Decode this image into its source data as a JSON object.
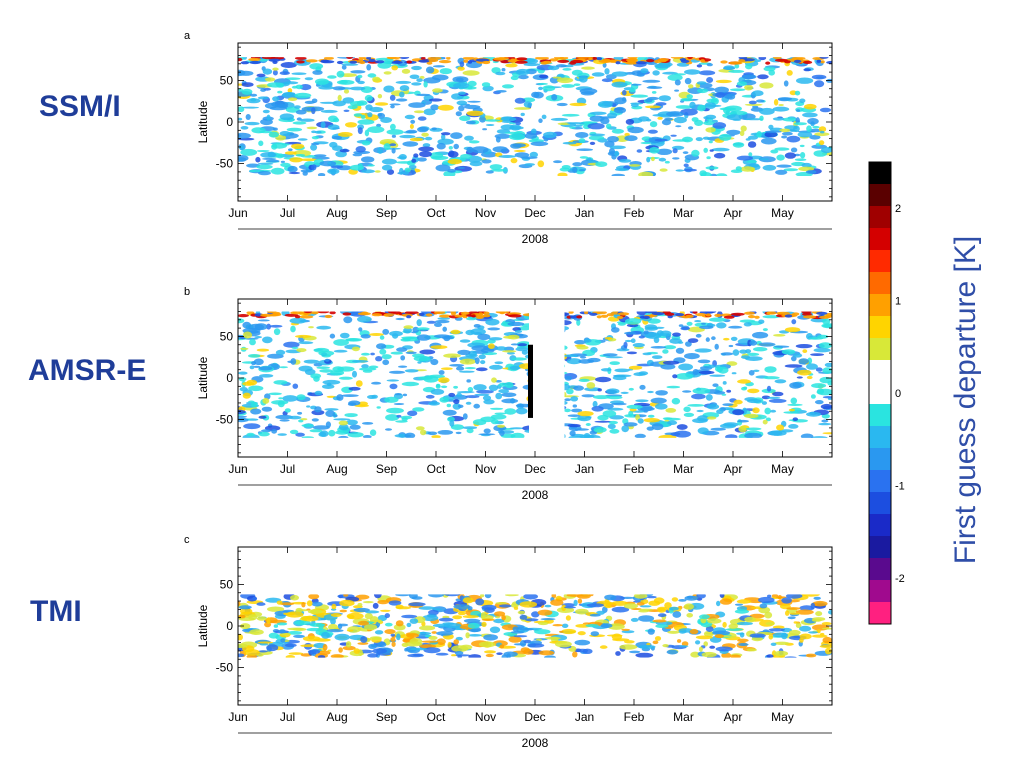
{
  "panels": [
    {
      "letter": "a",
      "sensor": "SSM/I",
      "ylabel": "Latitude",
      "year": "2008",
      "coverage": [
        -65,
        78
      ]
    },
    {
      "letter": "b",
      "sensor": "AMSR-E",
      "ylabel": "Latitude",
      "year": "2008",
      "coverage": [
        -72,
        80
      ]
    },
    {
      "letter": "c",
      "sensor": "TMI",
      "ylabel": "Latitude",
      "year": "2008",
      "coverage": [
        -38,
        38
      ]
    }
  ],
  "colorbar": {
    "title": "First guess departure [K]",
    "tick_labels": [
      "2",
      "1",
      "0",
      "-1",
      "-2"
    ],
    "colors": [
      "#000000",
      "#5a0000",
      "#a00000",
      "#d40000",
      "#ff2a00",
      "#ff6a00",
      "#ffa000",
      "#ffd400",
      "#d8e838",
      "#ffffff",
      "#ffffff",
      "#2ae4e0",
      "#2ab8f0",
      "#2a98f0",
      "#2a72f0",
      "#1c4ee0",
      "#1a2ac8",
      "#1a1aa0",
      "#5a0a8e",
      "#a00a8e",
      "#ff2080"
    ]
  },
  "chart_data": [
    {
      "type": "heatmap",
      "title": "SSM/I",
      "panel": "a",
      "x_tick_labels": [
        "Jun",
        "Jul",
        "Aug",
        "Sep",
        "Oct",
        "Nov",
        "Dec",
        "Jan",
        "Feb",
        "Mar",
        "Apr",
        "May"
      ],
      "xlabel": "2008",
      "ylabel": "Latitude",
      "y_ticks": [
        50,
        0,
        -50
      ],
      "ylim": [
        -95,
        95
      ],
      "value_label": "First guess departure [K]",
      "value_range": [
        -2.5,
        2.5
      ],
      "latitude_coverage": [
        -65,
        78
      ],
      "data_gaps": []
    },
    {
      "type": "heatmap",
      "title": "AMSR-E",
      "panel": "b",
      "x_tick_labels": [
        "Jun",
        "Jul",
        "Aug",
        "Sep",
        "Oct",
        "Nov",
        "Dec",
        "Jan",
        "Feb",
        "Mar",
        "Apr",
        "May"
      ],
      "xlabel": "2008",
      "ylabel": "Latitude",
      "y_ticks": [
        50,
        0,
        -50
      ],
      "ylim": [
        -95,
        95
      ],
      "value_label": "First guess departure [K]",
      "value_range": [
        -2.5,
        2.5
      ],
      "latitude_coverage": [
        -72,
        80
      ],
      "data_gaps": [
        [
          "Dec",
          "Jan"
        ]
      ]
    },
    {
      "type": "heatmap",
      "title": "TMI",
      "panel": "c",
      "x_tick_labels": [
        "Jun",
        "Jul",
        "Aug",
        "Sep",
        "Oct",
        "Nov",
        "Dec",
        "Jan",
        "Feb",
        "Mar",
        "Apr",
        "May"
      ],
      "xlabel": "2008",
      "ylabel": "Latitude",
      "y_ticks": [
        50,
        0,
        -50
      ],
      "ylim": [
        -95,
        95
      ],
      "value_label": "First guess departure [K]",
      "value_range": [
        -2.5,
        2.5
      ],
      "latitude_coverage": [
        -38,
        38
      ],
      "data_gaps": []
    }
  ]
}
